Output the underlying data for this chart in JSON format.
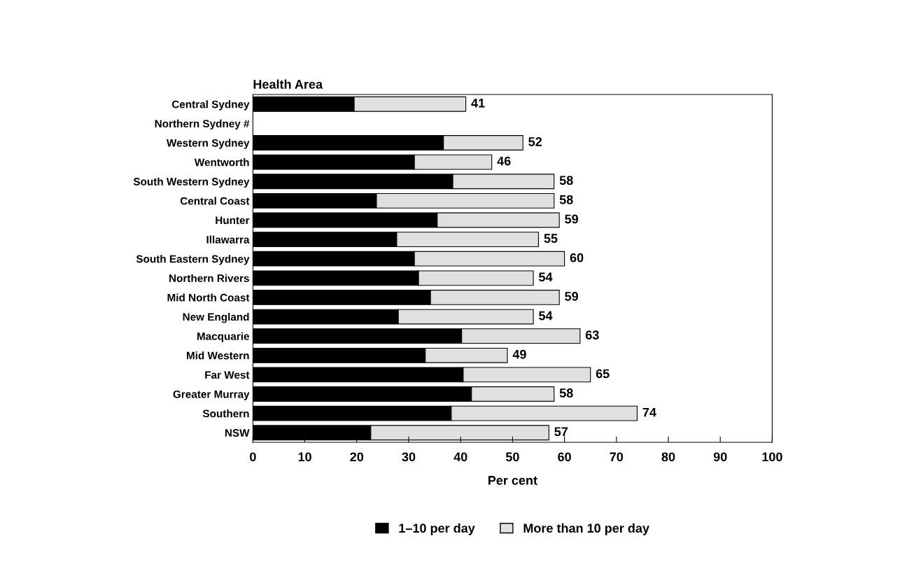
{
  "chart_data": {
    "type": "bar",
    "orientation": "horizontal",
    "stacked": true,
    "title": "Health Area",
    "xlabel": "Per cent",
    "categories": [
      "Central Sydney",
      "Northern Sydney #",
      "Western Sydney",
      "Wentworth",
      "South Western Sydney",
      "Central Coast",
      "Hunter",
      "Illawarra",
      "South Eastern Sydney",
      "Northern Rivers",
      "Mid North Coast",
      "New England",
      "Macquarie",
      "Mid Western",
      "Far West",
      "Greater Murray",
      "Southern",
      "NSW"
    ],
    "series": [
      {
        "name": "1–10 per day",
        "color": "#000000",
        "values": [
          19.5,
          null,
          36.7,
          31.1,
          38.5,
          23.8,
          35.5,
          27.7,
          31.1,
          31.9,
          34.2,
          28.0,
          40.2,
          33.2,
          40.5,
          42.1,
          38.2,
          22.7
        ]
      },
      {
        "name": "More than 10 per day",
        "color": "#e0e0e0",
        "values": [
          21.5,
          null,
          15.3,
          14.9,
          19.5,
          34.2,
          23.5,
          27.3,
          28.9,
          22.1,
          24.8,
          26.0,
          22.8,
          15.8,
          24.5,
          15.9,
          35.8,
          34.3
        ]
      }
    ],
    "totals": [
      "41",
      null,
      "52",
      "46",
      "58",
      "58",
      "59",
      "55",
      "60",
      "54",
      "59",
      "54",
      "63",
      "49",
      "65",
      "58",
      "74",
      "57"
    ],
    "xlim": [
      0,
      100
    ],
    "xticks": [
      0,
      10,
      20,
      30,
      40,
      50,
      60,
      70,
      80,
      90,
      100
    ],
    "grid": false,
    "legend": "bottom"
  }
}
